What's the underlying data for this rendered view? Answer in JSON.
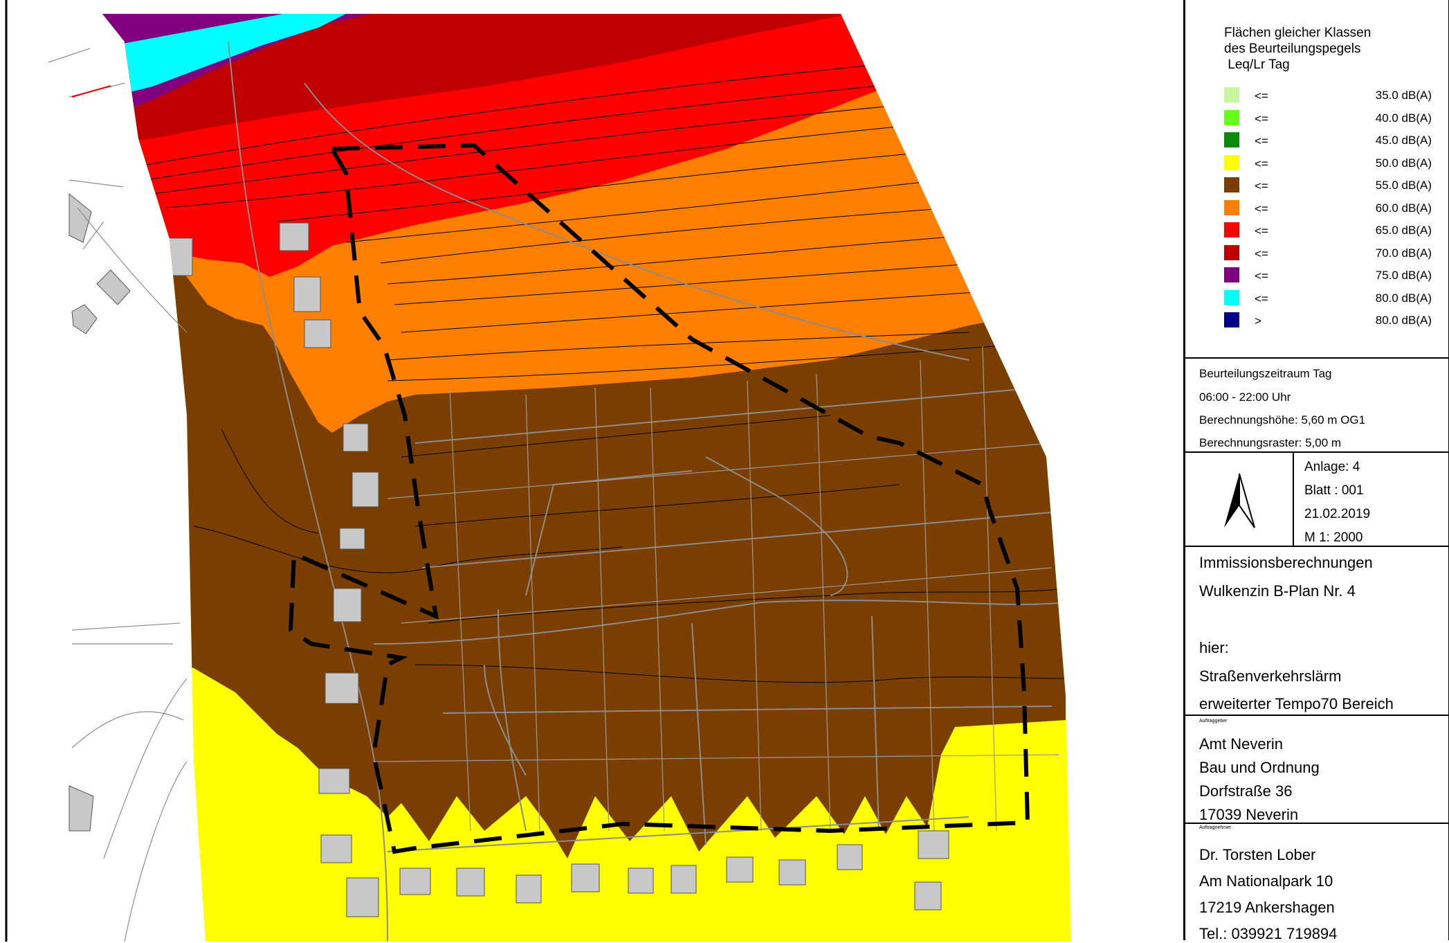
{
  "legend": {
    "title": "Flächen gleicher Klassen\ndes Beurteilungspegels\n Leq/Lr Tag",
    "items": [
      {
        "op": "<=",
        "value": "35.0 dB(A)",
        "color": "#c8f5a0"
      },
      {
        "op": "<=",
        "value": "40.0 dB(A)",
        "color": "#66ff1a"
      },
      {
        "op": "<=",
        "value": "45.0 dB(A)",
        "color": "#0a8a0a"
      },
      {
        "op": "<=",
        "value": "50.0 dB(A)",
        "color": "#ffff00"
      },
      {
        "op": "<=",
        "value": "55.0 dB(A)",
        "color": "#7a3f00"
      },
      {
        "op": "<=",
        "value": "60.0 dB(A)",
        "color": "#ff8000"
      },
      {
        "op": "<=",
        "value": "65.0 dB(A)",
        "color": "#ff0000"
      },
      {
        "op": "<=",
        "value": "70.0 dB(A)",
        "color": "#c00000"
      },
      {
        "op": "<=",
        "value": "75.0 dB(A)",
        "color": "#800080"
      },
      {
        "op": "<=",
        "value": "80.0 dB(A)",
        "color": "#00ffff"
      },
      {
        "op": ">",
        "value": "80.0 dB(A)",
        "color": "#00008b"
      }
    ]
  },
  "assessment": {
    "period": "Beurteilungszeitraum Tag",
    "time": "06:00 - 22:00 Uhr",
    "height": "Berechnungshöhe:  5,60 m OG1",
    "grid": "Berechnungsraster: 5,00 m"
  },
  "sheet": {
    "anlage": "Anlage: 4",
    "blatt": "Blatt : 001",
    "date": "21.02.2019",
    "scale": "M 1:   2000",
    "north_icon": "north-arrow-icon"
  },
  "project": {
    "line1": "Immissionsberechnungen",
    "line2": "Wulkenzin B-Plan Nr. 4",
    "line3": "hier:",
    "line4": "Straßenverkehrslärm",
    "line5": "erweiterter Tempo70 Bereich"
  },
  "client": {
    "label": "Auftraggeber",
    "name": "Amt Neverin",
    "dept": "Bau und Ordnung",
    "street": "Dorfstraße 36",
    "city": "17039 Neverin"
  },
  "contractor": {
    "label": "Auftragnehmer",
    "name": "Dr. Torsten Lober",
    "street": "Am Nationalpark 10",
    "city": "17219 Ankershagen",
    "phone": "Tel.: 039921 719894"
  }
}
